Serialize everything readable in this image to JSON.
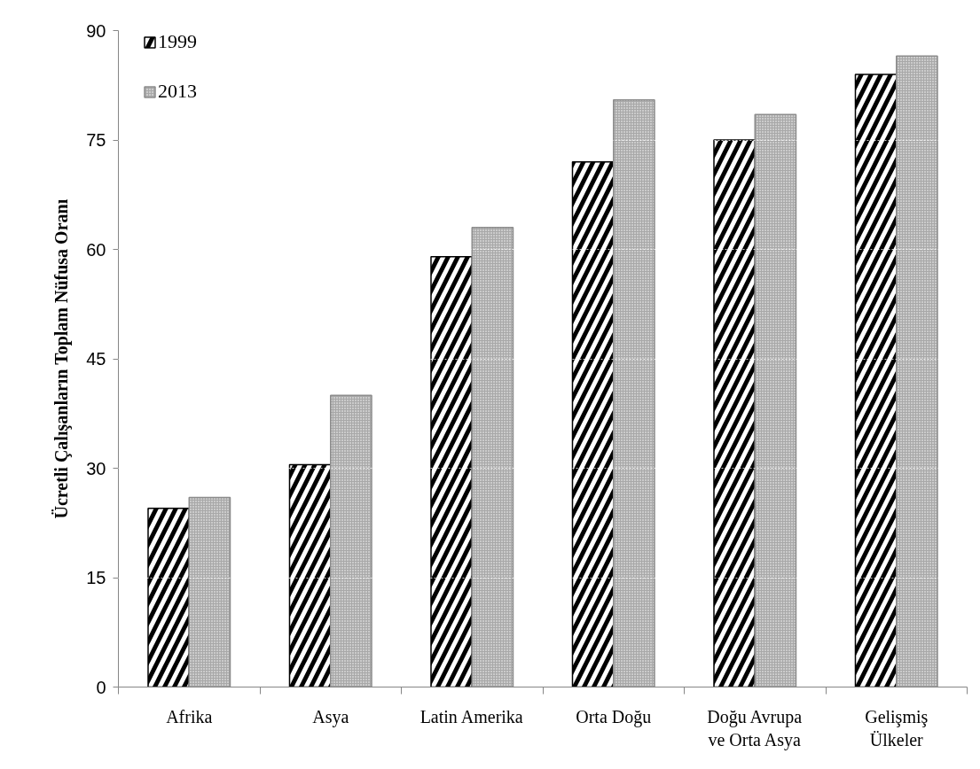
{
  "chart_data": {
    "type": "bar",
    "ylabel": "Ücretli Çalışanların Toplam Nüfusa Oranı",
    "categories": [
      "Afrika",
      "Asya",
      "Latin Amerika",
      "Orta Doğu",
      "Doğu Avrupa ve Orta Asya",
      "Gelişmiş Ülkeler"
    ],
    "series": [
      {
        "name": "1999",
        "color": "#000000",
        "values": [
          24.5,
          30.5,
          59,
          72,
          75,
          84
        ]
      },
      {
        "name": "2013",
        "color": "#a8a8a8",
        "values": [
          26,
          40,
          63,
          80.5,
          78.5,
          86.5
        ]
      }
    ],
    "ylim": [
      0,
      90
    ],
    "yticks": [
      0,
      15,
      30,
      45,
      60,
      75,
      90
    ],
    "grid": "y",
    "legend": "top left"
  }
}
